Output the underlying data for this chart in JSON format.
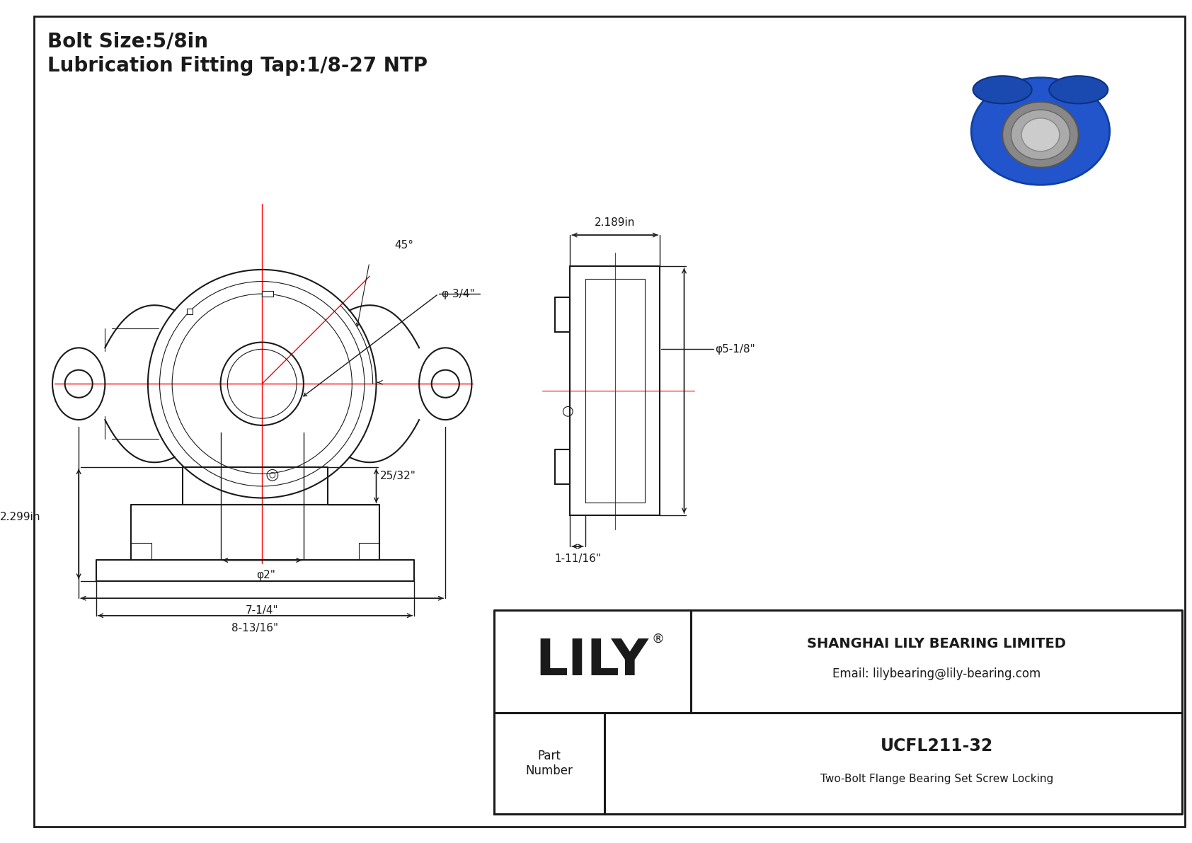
{
  "bg_color": "#ffffff",
  "line_color": "#1a1a1a",
  "red_color": "#ff0000",
  "title_lines": [
    "Bolt Size:5/8in",
    "Lubrication Fitting Tap:1/8-27 NTP"
  ],
  "company_name": "SHANGHAI LILY BEARING LIMITED",
  "company_email": "Email: lilybearing@lily-bearing.com",
  "part_number": "UCFL211-32",
  "part_desc": "Two-Bolt Flange Bearing Set Screw Locking",
  "part_label": "Part\nNumber",
  "lily_brand": "LILY",
  "dim_45": "45°",
  "dim_bore": "φ 3/4\"",
  "dim_shaft": "φ2\"",
  "dim_width": "7-1/4\"",
  "dim_side_width": "2.189in",
  "dim_side_dia": "φ5-1/8\"",
  "dim_side_depth": "1-11/16\"",
  "dim_front_height": "2.299in",
  "dim_front_width": "8-13/16\"",
  "dim_front_right": "25/32\""
}
